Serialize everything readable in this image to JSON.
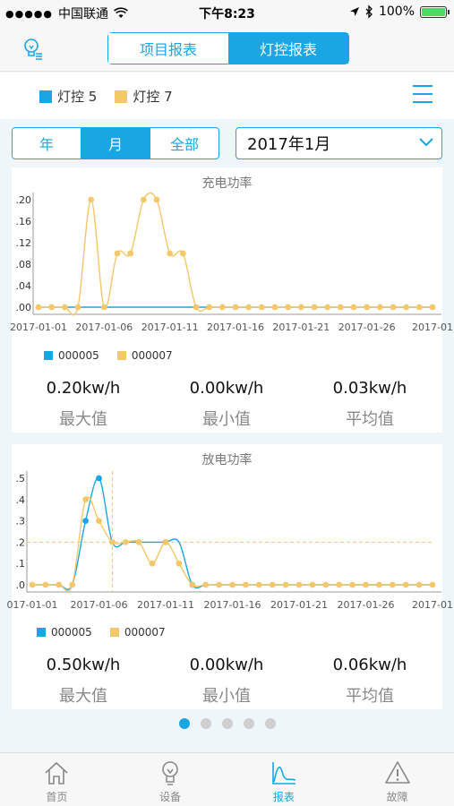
{
  "status": {
    "carrier": "中国联通",
    "time": "下午8:23",
    "battery": "100%"
  },
  "nav": {
    "tabs": [
      "项目报表",
      "灯控报表"
    ],
    "active_tab": 1
  },
  "legend_bar": {
    "items": [
      {
        "label": "灯控 5",
        "color": "#1aa6e3"
      },
      {
        "label": "灯控 7",
        "color": "#f5c76b"
      }
    ]
  },
  "filters": {
    "periods": [
      "年",
      "月",
      "全部"
    ],
    "active_period": 1,
    "selected_month": "2017年1月"
  },
  "colors": {
    "accent": "#1aa6e3",
    "series_a": "#1aa6e3",
    "series_b": "#f5c76b"
  },
  "charts": [
    {
      "stats": [
        {
          "value": "0.20kw/h",
          "label": "最大值"
        },
        {
          "value": "0.00kw/h",
          "label": "最小值"
        },
        {
          "value": "0.03kw/h",
          "label": "平均值"
        }
      ]
    },
    {
      "stats": [
        {
          "value": "0.50kw/h",
          "label": "最大值"
        },
        {
          "value": "0.00kw/h",
          "label": "最小值"
        },
        {
          "value": "0.06kw/h",
          "label": "平均值"
        }
      ]
    }
  ],
  "chart_data": [
    {
      "type": "line",
      "title": "充电功率",
      "x": [
        "2017-01-01",
        "2017-01-02",
        "2017-01-03",
        "2017-01-04",
        "2017-01-05",
        "2017-01-06",
        "2017-01-07",
        "2017-01-08",
        "2017-01-09",
        "2017-01-10",
        "2017-01-11",
        "2017-01-12",
        "2017-01-13",
        "2017-01-14",
        "2017-01-15",
        "2017-01-16",
        "2017-01-17",
        "2017-01-18",
        "2017-01-19",
        "2017-01-20",
        "2017-01-21",
        "2017-01-22",
        "2017-01-23",
        "2017-01-24",
        "2017-01-25",
        "2017-01-26",
        "2017-01-27",
        "2017-01-28",
        "2017-01-29",
        "2017-01-30",
        "2017-01-31"
      ],
      "xticks": [
        "2017-01-01",
        "2017-01-06",
        "2017-01-11",
        "2017-01-16",
        "2017-01-21",
        "2017-01-26",
        "2017-01-31"
      ],
      "xtick_labels": [
        "2017-01-01",
        "2017-01-06",
        "2017-01-11",
        "2017-01-16",
        "2017-01-21",
        "2017-01-26",
        "2017-01"
      ],
      "yticks": [
        0.0,
        0.04,
        0.08,
        0.12,
        0.16,
        0.2
      ],
      "ytick_labels": [
        ".00",
        ".04",
        ".08",
        ".12",
        ".16",
        ".20"
      ],
      "ylim": [
        0,
        0.2
      ],
      "grid": false,
      "legend": "bottom-left",
      "series": [
        {
          "name": "000005",
          "color": "#1aa6e3",
          "values": [
            0,
            0,
            0,
            0,
            0,
            0,
            0,
            0,
            0,
            0,
            0,
            0,
            0,
            0,
            0,
            0,
            0,
            0,
            0,
            0,
            0,
            0,
            0,
            0,
            0,
            0,
            0,
            0,
            0,
            0,
            0
          ],
          "markers": false
        },
        {
          "name": "000007",
          "color": "#f5c76b",
          "values": [
            0,
            0,
            0,
            0,
            0.2,
            0,
            0.1,
            0.1,
            0.2,
            0.2,
            0.1,
            0.1,
            0,
            0,
            0,
            0,
            0,
            0,
            0,
            0,
            0,
            0,
            0,
            0,
            0,
            0,
            0,
            0,
            0,
            0,
            0
          ],
          "markers": true
        }
      ]
    },
    {
      "type": "line",
      "title": "放电功率",
      "x": [
        "2017-01-01",
        "2017-01-02",
        "2017-01-03",
        "2017-01-04",
        "2017-01-05",
        "2017-01-06",
        "2017-01-07",
        "2017-01-08",
        "2017-01-09",
        "2017-01-10",
        "2017-01-11",
        "2017-01-12",
        "2017-01-13",
        "2017-01-14",
        "2017-01-15",
        "2017-01-16",
        "2017-01-17",
        "2017-01-18",
        "2017-01-19",
        "2017-01-20",
        "2017-01-21",
        "2017-01-22",
        "2017-01-23",
        "2017-01-24",
        "2017-01-25",
        "2017-01-26",
        "2017-01-27",
        "2017-01-28",
        "2017-01-29",
        "2017-01-30",
        "2017-01-31"
      ],
      "xticks": [
        "2017-01-01",
        "2017-01-06",
        "2017-01-11",
        "2017-01-16",
        "2017-01-21",
        "2017-01-26",
        "2017-01-31"
      ],
      "xtick_labels": [
        "017-01-01",
        "2017-01-06",
        "2017-01-11",
        "2017-01-16",
        "2017-01-21",
        "2017-01-26",
        "2017-01"
      ],
      "yticks": [
        0.0,
        0.1,
        0.2,
        0.3,
        0.4,
        0.5
      ],
      "ytick_labels": [
        ".0",
        ".1",
        ".2",
        ".3",
        ".4",
        ".5"
      ],
      "ylim": [
        0,
        0.5
      ],
      "grid": false,
      "legend": "bottom-left",
      "reference_line": {
        "y": 0.2,
        "x": "2017-01-07"
      },
      "series": [
        {
          "name": "000005",
          "color": "#1aa6e3",
          "values": [
            0,
            0,
            0,
            0,
            0.3,
            0.5,
            0.2,
            0.2,
            0.2,
            0.2,
            0.2,
            0.2,
            0,
            0,
            0,
            0,
            0,
            0,
            0,
            0,
            0,
            0,
            0,
            0,
            0,
            0,
            0,
            0,
            0,
            0,
            0
          ],
          "markers": [
            4,
            5,
            10,
            12
          ]
        },
        {
          "name": "000007",
          "color": "#f5c76b",
          "values": [
            0,
            0,
            0,
            0,
            0.4,
            0.3,
            0.2,
            0.2,
            0.2,
            0.1,
            0.2,
            0.1,
            0,
            0,
            0,
            0,
            0,
            0,
            0,
            0,
            0,
            0,
            0,
            0,
            0,
            0,
            0,
            0,
            0,
            0,
            0
          ],
          "markers": true
        }
      ]
    }
  ],
  "pager": {
    "count": 5,
    "active": 0
  },
  "tabbar": {
    "items": [
      {
        "label": "首页",
        "icon": "home-icon"
      },
      {
        "label": "设备",
        "icon": "lightbulb-icon"
      },
      {
        "label": "报表",
        "icon": "chart-icon"
      },
      {
        "label": "故障",
        "icon": "warning-icon"
      }
    ],
    "active": 2
  }
}
